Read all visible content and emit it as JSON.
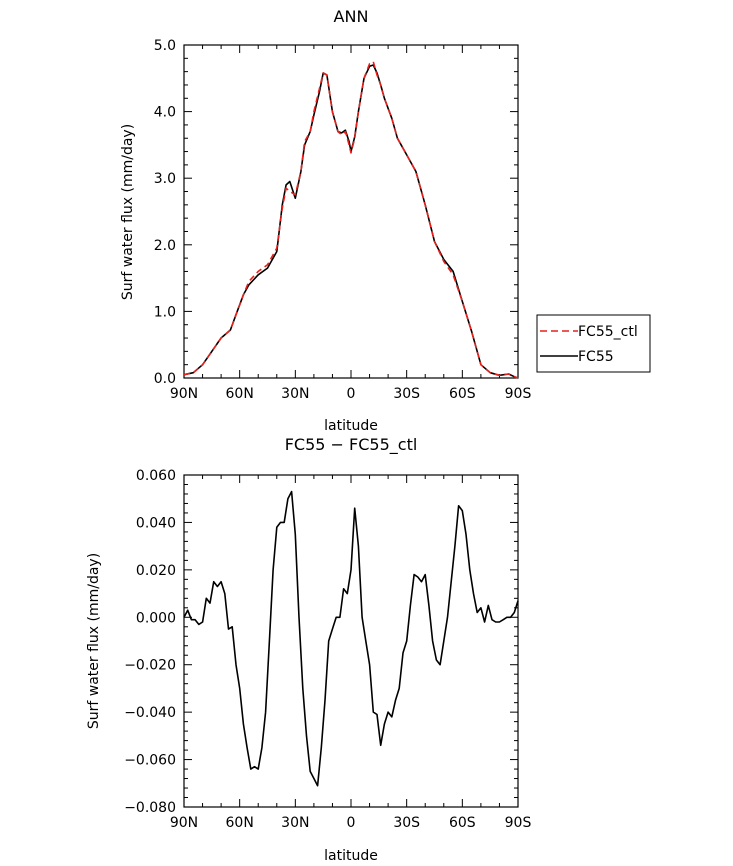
{
  "chart_data": [
    {
      "type": "line",
      "title": "ANN",
      "xlabel": "latitude",
      "ylabel": "Surf water flux (mm/day)",
      "xlim": [
        90,
        -90
      ],
      "ylim": [
        0,
        5
      ],
      "xticks": [
        90,
        60,
        30,
        0,
        -30,
        -60,
        -90
      ],
      "xtick_labels": [
        "90N",
        "60N",
        "30N",
        "0",
        "30S",
        "60S",
        "90S"
      ],
      "yticks": [
        0,
        1,
        2,
        3,
        4,
        5
      ],
      "ytick_labels": [
        "0.0",
        "1.0",
        "2.0",
        "3.0",
        "4.0",
        "5.0"
      ],
      "legend_placement": "right",
      "legend": [
        {
          "label": "FC55_ctl",
          "color": "#e8201c",
          "style": "dashed"
        },
        {
          "label": "FC55",
          "color": "#000000",
          "style": "solid"
        }
      ],
      "series": [
        {
          "name": "FC55_ctl",
          "color": "#e8201c",
          "x": [
            90,
            85,
            80,
            75,
            70,
            65,
            62,
            58,
            55,
            50,
            45,
            40,
            37,
            35,
            33,
            30,
            27,
            25,
            22,
            20,
            17,
            15,
            13,
            10,
            7,
            5,
            3,
            1,
            0,
            -2,
            -4,
            -7,
            -10,
            -12,
            -14,
            -16,
            -18,
            -22,
            -25,
            -30,
            -35,
            -40,
            -45,
            -50,
            -55,
            -60,
            -65,
            -70,
            -75,
            -80,
            -85,
            -88,
            -90
          ],
          "y": [
            0.05,
            0.08,
            0.2,
            0.4,
            0.6,
            0.72,
            0.95,
            1.25,
            1.45,
            1.6,
            1.7,
            1.95,
            2.55,
            2.85,
            2.8,
            2.75,
            3.1,
            3.55,
            3.7,
            4.0,
            4.35,
            4.58,
            4.55,
            4.0,
            3.7,
            3.65,
            3.7,
            3.5,
            3.38,
            3.6,
            4.0,
            4.5,
            4.72,
            4.75,
            4.55,
            4.4,
            4.2,
            3.9,
            3.6,
            3.35,
            3.1,
            2.6,
            2.05,
            1.75,
            1.55,
            1.15,
            0.7,
            0.2,
            0.08,
            0.04,
            0.06,
            0.02,
            0.0
          ]
        },
        {
          "name": "FC55",
          "color": "#000000",
          "x": [
            90,
            85,
            80,
            75,
            70,
            65,
            62,
            58,
            55,
            50,
            45,
            40,
            37,
            35,
            33,
            30,
            27,
            25,
            22,
            20,
            17,
            15,
            13,
            10,
            7,
            5,
            3,
            1,
            0,
            -2,
            -4,
            -7,
            -10,
            -12,
            -14,
            -16,
            -18,
            -22,
            -25,
            -30,
            -35,
            -40,
            -45,
            -50,
            -55,
            -60,
            -65,
            -70,
            -75,
            -80,
            -85,
            -88,
            -90
          ],
          "y": [
            0.05,
            0.08,
            0.2,
            0.4,
            0.6,
            0.72,
            0.95,
            1.25,
            1.4,
            1.55,
            1.65,
            1.9,
            2.6,
            2.9,
            2.95,
            2.7,
            3.1,
            3.5,
            3.7,
            3.95,
            4.3,
            4.58,
            4.55,
            4.0,
            3.7,
            3.68,
            3.72,
            3.55,
            3.4,
            3.62,
            4.0,
            4.5,
            4.68,
            4.7,
            4.58,
            4.4,
            4.2,
            3.9,
            3.6,
            3.35,
            3.1,
            2.6,
            2.05,
            1.78,
            1.6,
            1.15,
            0.7,
            0.2,
            0.08,
            0.04,
            0.06,
            0.02,
            0.0
          ]
        }
      ]
    },
    {
      "type": "line",
      "title": "FC55 − FC55_ctl",
      "xlabel": "latitude",
      "ylabel": "Surf water flux (mm/day)",
      "xlim": [
        90,
        -90
      ],
      "ylim": [
        -0.08,
        0.06
      ],
      "xticks": [
        90,
        60,
        30,
        0,
        -30,
        -60,
        -90
      ],
      "xtick_labels": [
        "90N",
        "60N",
        "30N",
        "0",
        "30S",
        "60S",
        "90S"
      ],
      "yticks": [
        -0.08,
        -0.06,
        -0.04,
        -0.02,
        0.0,
        0.02,
        0.04,
        0.06
      ],
      "ytick_labels": [
        "−0.080",
        "−0.060",
        "−0.040",
        "−0.020",
        "0.000",
        "0.020",
        "0.040",
        "0.060"
      ],
      "series": [
        {
          "color": "#000000",
          "x": [
            90,
            88,
            86,
            84,
            82,
            80,
            78,
            76,
            74,
            72,
            70,
            68,
            66,
            64,
            62,
            60,
            58,
            56,
            54,
            52,
            50,
            48,
            46,
            44,
            42,
            40,
            38,
            36,
            34,
            32,
            30,
            28,
            26,
            24,
            22,
            20,
            18,
            16,
            14,
            12,
            10,
            8,
            6,
            4,
            2,
            0,
            -2,
            -4,
            -6,
            -8,
            -10,
            -12,
            -14,
            -16,
            -18,
            -20,
            -22,
            -24,
            -26,
            -28,
            -30,
            -32,
            -34,
            -36,
            -38,
            -40,
            -42,
            -44,
            -46,
            -48,
            -50,
            -52,
            -54,
            -56,
            -58,
            -60,
            -62,
            -64,
            -66,
            -68,
            -70,
            -72,
            -74,
            -76,
            -78,
            -80,
            -82,
            -84,
            -86,
            -88,
            -90
          ],
          "y": [
            0.0,
            0.003,
            -0.001,
            -0.001,
            -0.003,
            -0.002,
            0.008,
            0.006,
            0.015,
            0.013,
            0.015,
            0.01,
            -0.005,
            -0.004,
            -0.02,
            -0.03,
            -0.045,
            -0.055,
            -0.064,
            -0.063,
            -0.064,
            -0.055,
            -0.04,
            -0.01,
            0.02,
            0.038,
            0.04,
            0.04,
            0.05,
            0.053,
            0.035,
            0.0,
            -0.03,
            -0.05,
            -0.065,
            -0.068,
            -0.071,
            -0.055,
            -0.035,
            -0.01,
            -0.005,
            0.0,
            0.0,
            0.012,
            0.01,
            0.02,
            0.046,
            0.03,
            0.0,
            -0.01,
            -0.02,
            -0.04,
            -0.041,
            -0.054,
            -0.045,
            -0.04,
            -0.042,
            -0.035,
            -0.03,
            -0.015,
            -0.01,
            0.005,
            0.018,
            0.017,
            0.015,
            0.018,
            0.005,
            -0.01,
            -0.018,
            -0.02,
            -0.01,
            0.0,
            0.015,
            0.03,
            0.047,
            0.045,
            0.035,
            0.02,
            0.01,
            0.002,
            0.004,
            -0.002,
            0.005,
            -0.001,
            -0.002,
            -0.002,
            -0.001,
            0.0,
            0.0,
            0.002,
            0.007
          ]
        }
      ]
    }
  ]
}
